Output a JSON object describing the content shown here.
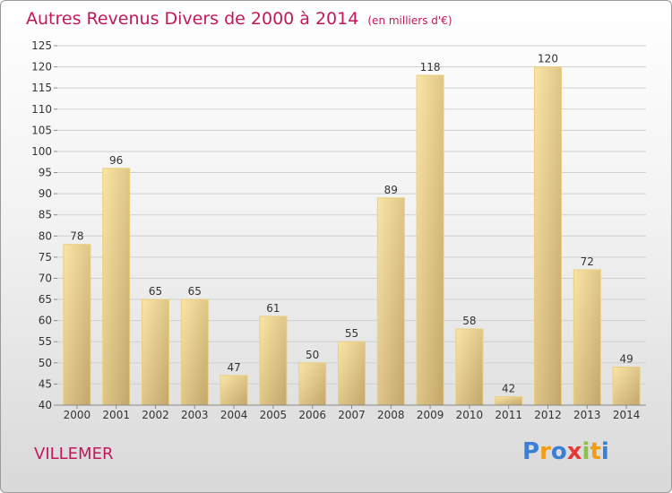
{
  "header": {
    "title": "Autres Revenus Divers de 2000 à 2014",
    "unit": "(en milliers d'€)"
  },
  "footer": {
    "place": "VILLEMER",
    "logo": {
      "letters": [
        "P",
        "r",
        "o",
        "x",
        "i",
        "t",
        "i"
      ],
      "colors": [
        "#3a7fd5",
        "#f39c12",
        "#3a7fd5",
        "#e53935",
        "#8bc34a",
        "#f39c12",
        "#3a7fd5"
      ]
    }
  },
  "chart_data": {
    "type": "bar",
    "title": "Autres Revenus Divers de 2000 à 2014",
    "xlabel": "",
    "ylabel": "",
    "categories": [
      "2000",
      "2001",
      "2002",
      "2003",
      "2004",
      "2005",
      "2006",
      "2007",
      "2008",
      "2009",
      "2010",
      "2011",
      "2012",
      "2013",
      "2014"
    ],
    "values": [
      78,
      96,
      65,
      65,
      47,
      61,
      50,
      55,
      89,
      118,
      58,
      42,
      120,
      72,
      49
    ],
    "ylim": [
      40,
      125
    ],
    "yticks": [
      40,
      45,
      50,
      55,
      60,
      65,
      70,
      75,
      80,
      85,
      90,
      95,
      100,
      105,
      110,
      115,
      120,
      125
    ],
    "grid": true,
    "legend": "none",
    "colors": {
      "bar_light": "#f7dc96",
      "bar_dark": "#c7aa6c",
      "bar_edge": "#e9cf7d",
      "axis_text": "#333333"
    }
  }
}
